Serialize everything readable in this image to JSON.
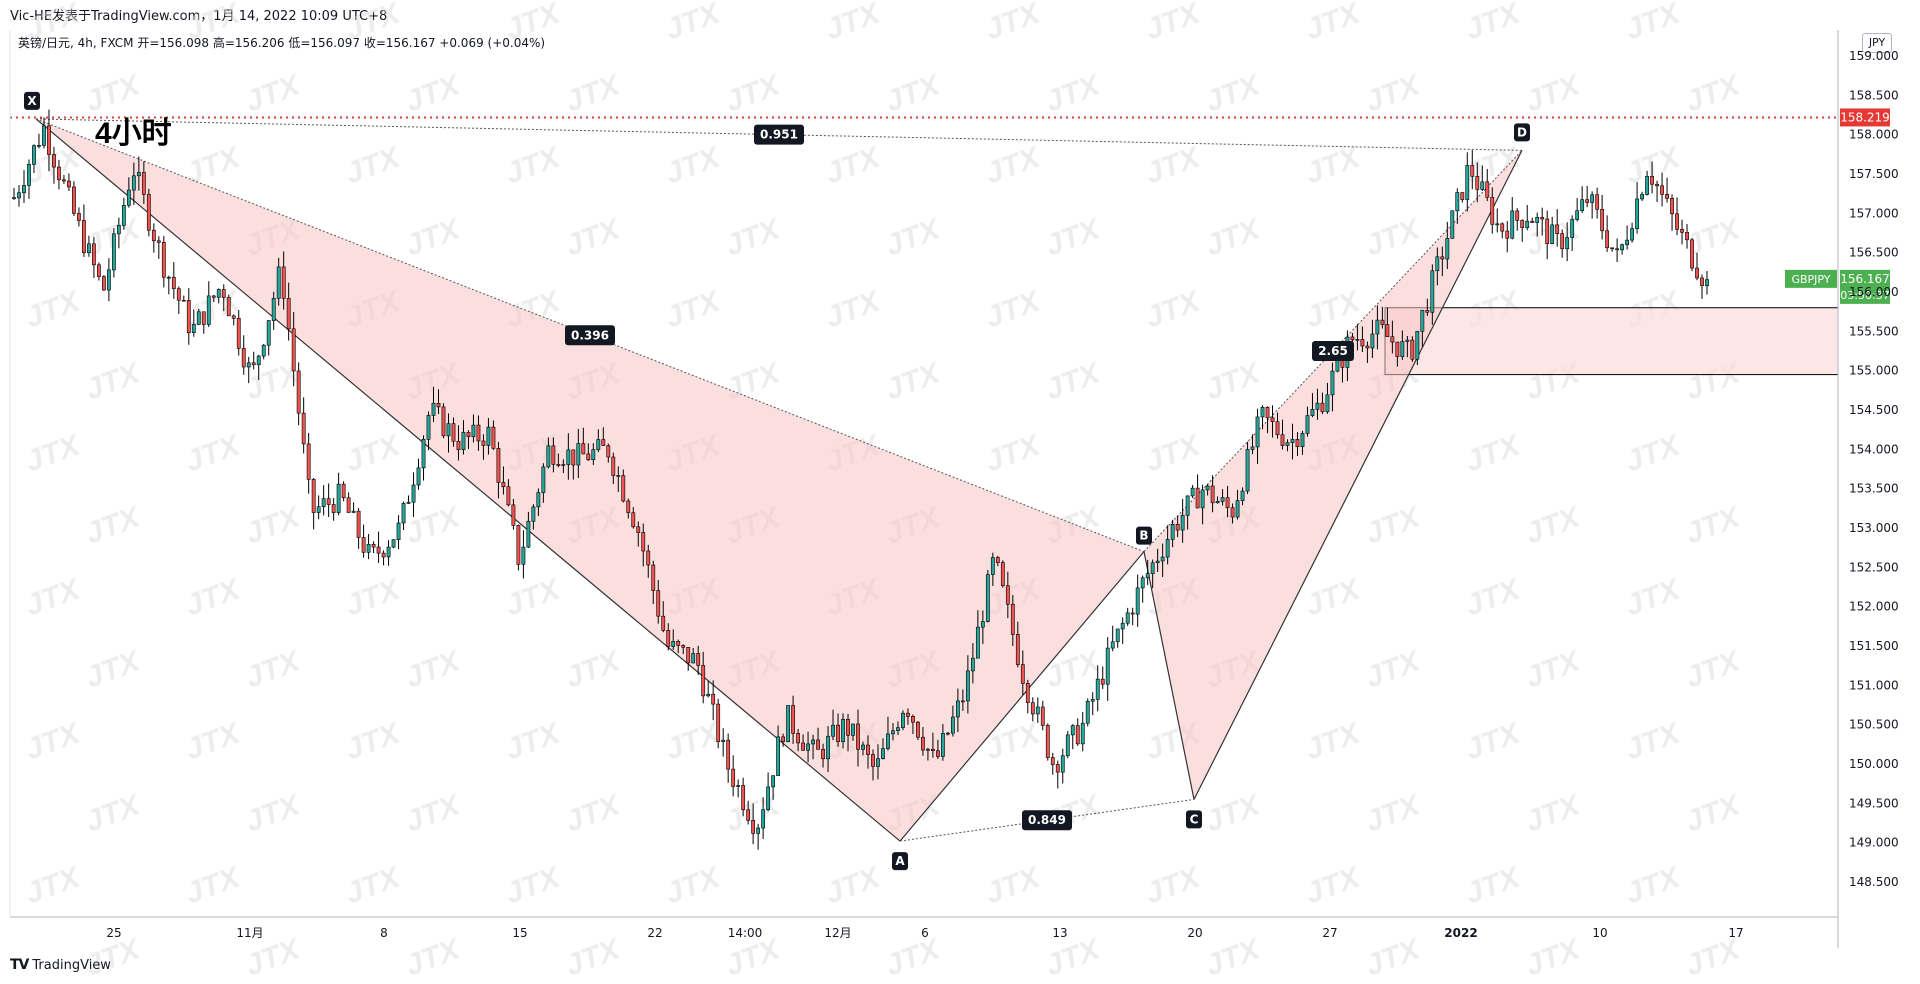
{
  "header": {
    "publisher": "Vic-HE发表于TradingView.com，1月 14, 2022 10:09 UTC+8",
    "symbol_line": "英镑/日元, 4h, FXCM  开=156.098  高=156.206  低=156.097  收=156.167  +0.069 (+0.04%)"
  },
  "currency": "JPY",
  "footer": {
    "brand": "TradingView",
    "logo": "TV"
  },
  "colors": {
    "up": "#26a69a",
    "down": "#ef5350",
    "candle": "#000000",
    "pattern_fill": "#f8c4c4",
    "zone_fill": "#fbdcdc",
    "resistance": "#e53935",
    "price_tag": "#4caf50",
    "watermark": "#d9d9d9"
  },
  "chart_data": {
    "type": "candlestick",
    "title": "4小时",
    "symbol": "GBPJPY",
    "timeframe": "4h",
    "ylim": [
      148.0,
      159.2
    ],
    "y_ticks": [
      "148.500",
      "149.000",
      "149.500",
      "150.000",
      "150.500",
      "151.000",
      "151.500",
      "152.000",
      "152.500",
      "153.000",
      "153.500",
      "154.000",
      "154.500",
      "155.000",
      "155.500",
      "156.000",
      "156.500",
      "157.000",
      "157.500",
      "158.000",
      "158.500",
      "159.000"
    ],
    "x_ticks": [
      "25",
      "11月",
      "8",
      "15",
      "22",
      "14:00",
      "12月",
      "6",
      "13",
      "20",
      "27",
      "2022",
      "10",
      "17"
    ],
    "last_price": {
      "value": 156.167,
      "label": "156.167",
      "countdown": "03:50:37",
      "symbol": "GBPJPY"
    },
    "resistance": {
      "value": 158.219,
      "label": "158.219"
    },
    "supply_zone": {
      "top": 155.8,
      "bottom": 154.95
    },
    "harmonic_pattern": {
      "points": [
        {
          "name": "X",
          "value": 158.2
        },
        {
          "name": "A",
          "value": 149.02
        },
        {
          "name": "B",
          "value": 152.7
        },
        {
          "name": "C",
          "value": 149.55
        },
        {
          "name": "D",
          "value": 157.8
        }
      ],
      "ratios": [
        {
          "label": "0.396",
          "between": "XB"
        },
        {
          "label": "0.849",
          "between": "AC"
        },
        {
          "label": "2.65",
          "between": "BD"
        },
        {
          "label": "0.951",
          "between": "XD"
        }
      ]
    },
    "ohlc_anchors": [
      157.2,
      158.1,
      157.0,
      156.0,
      157.6,
      156.4,
      155.5,
      156.1,
      154.9,
      156.3,
      153.2,
      153.4,
      152.6,
      153.0,
      154.5,
      154.1,
      154.2,
      152.6,
      154.0,
      153.9,
      154.0,
      153.0,
      151.5,
      151.3,
      150.0,
      149.2,
      150.6,
      150.1,
      150.5,
      149.9,
      150.8,
      150.0,
      150.9,
      152.6,
      151.1,
      150.0,
      150.5,
      151.5,
      152.3,
      153.0,
      153.5,
      153.2,
      154.4,
      154.1,
      154.6,
      155.4,
      155.5,
      155.2,
      156.4,
      157.6,
      156.8,
      157.0,
      156.6,
      157.2,
      156.4,
      157.6,
      156.8,
      156.1
    ]
  }
}
